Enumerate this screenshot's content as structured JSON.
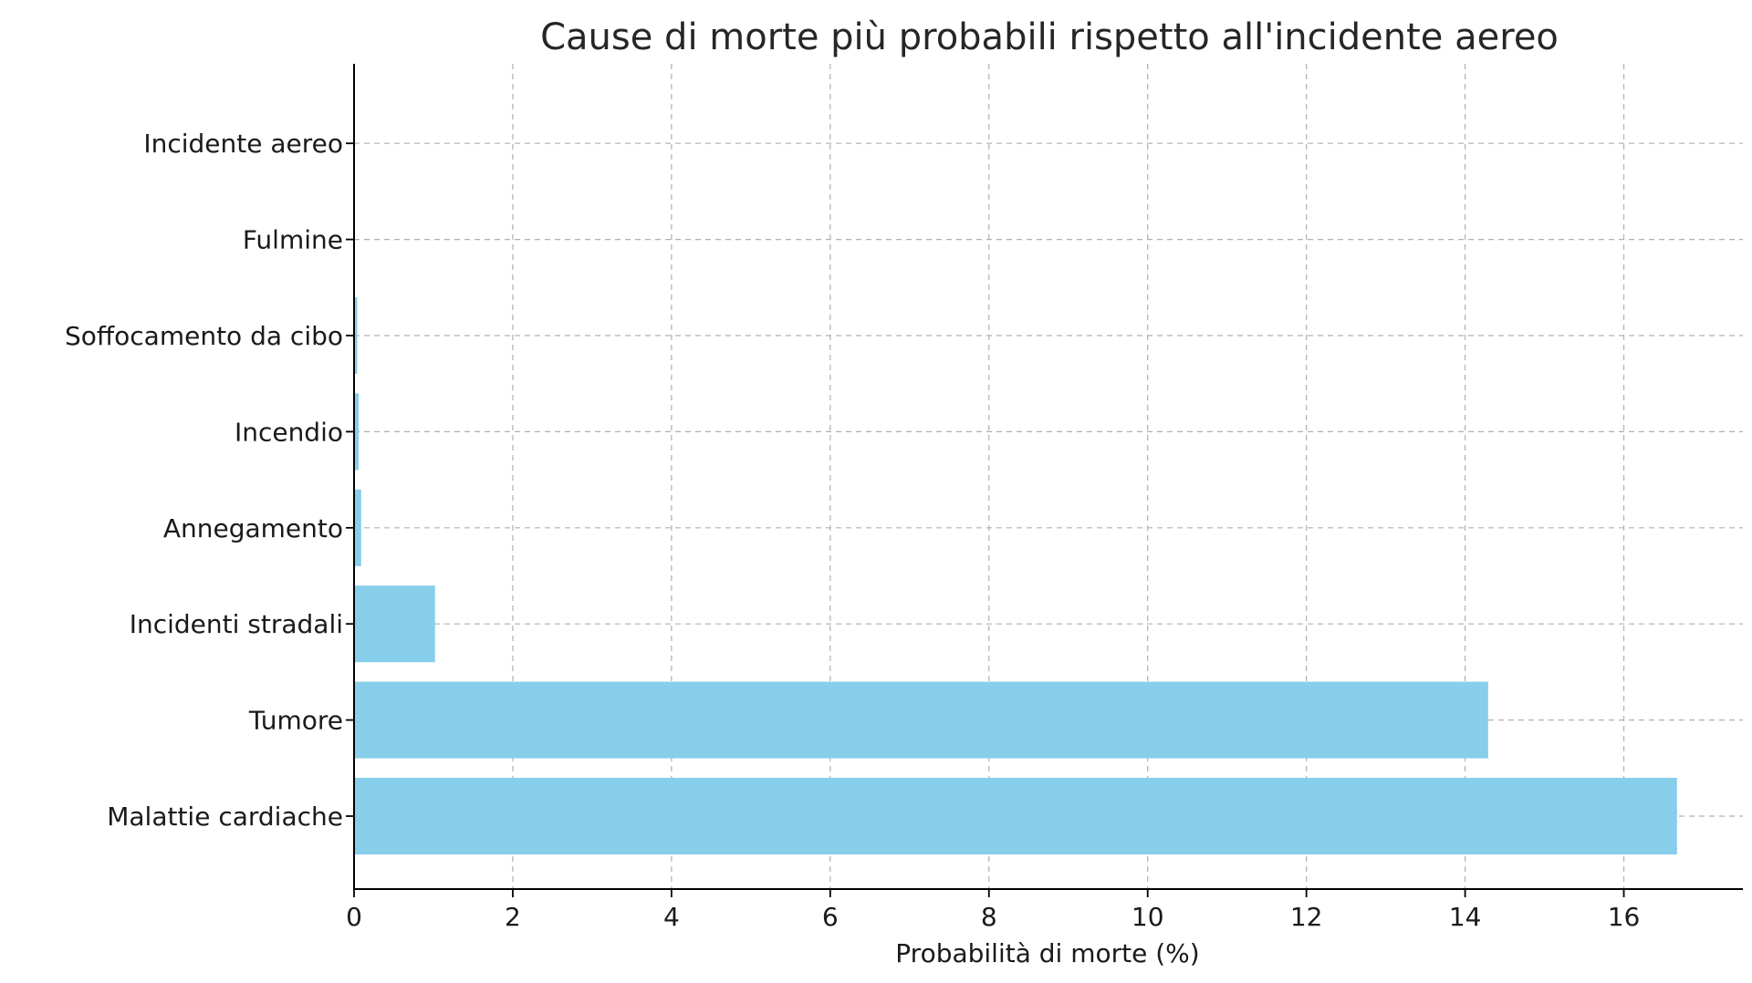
{
  "chart_data": {
    "type": "bar",
    "orientation": "horizontal",
    "title": "Cause di morte più probabili rispetto all'incidente aereo",
    "xlabel": "Probabilità di morte (%)",
    "ylabel": "",
    "categories": [
      "Malattie cardiache",
      "Tumore",
      "Incidenti stradali",
      "Annegamento",
      "Incendio",
      "Soffocamento da cibo",
      "Fulmine",
      "Incidente aereo"
    ],
    "values": [
      16.67,
      14.29,
      1.02,
      0.09,
      0.06,
      0.04,
      0.0001,
      1e-05
    ],
    "xlim": [
      0,
      17.5
    ],
    "xticks": [
      0,
      2,
      4,
      6,
      8,
      10,
      12,
      14,
      16
    ],
    "bar_color": "#87ceeb",
    "grid": true,
    "legend": "none"
  }
}
